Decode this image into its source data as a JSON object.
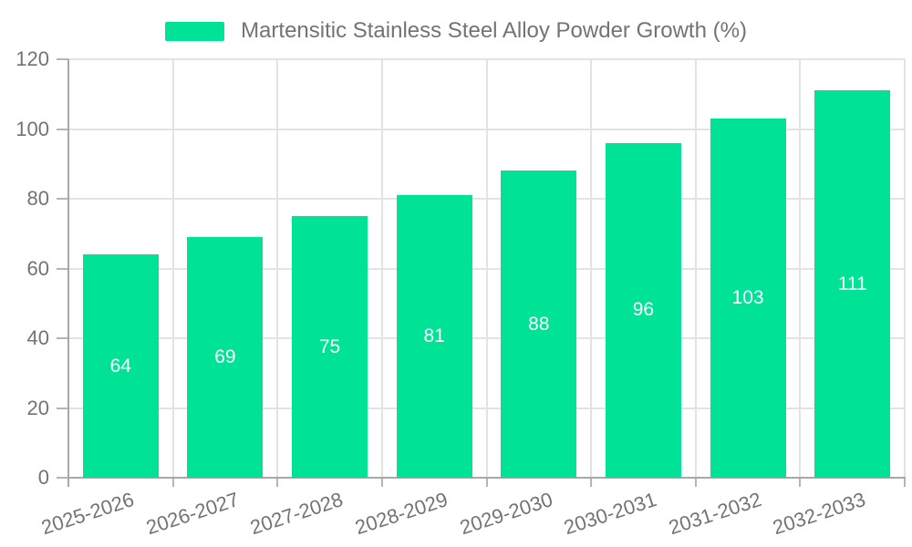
{
  "chart_data": {
    "type": "bar",
    "title": "",
    "legend_label": "Martensitic Stainless Steel Alloy Powder Growth (%)",
    "legend_position": "top-center",
    "categories": [
      "2025-2026",
      "2026-2027",
      "2027-2028",
      "2028-2029",
      "2029-2030",
      "2030-2031",
      "2031-2032",
      "2032-2033"
    ],
    "series": [
      {
        "name": "Martensitic Stainless Steel Alloy Powder Growth (%)",
        "values": [
          64,
          69,
          75,
          81,
          88,
          96,
          103,
          111
        ]
      }
    ],
    "data_labels": "inside-center",
    "xlabel": "",
    "ylabel": "",
    "ylim": [
      0,
      120
    ],
    "yticks": [
      0,
      20,
      40,
      60,
      80,
      100,
      120
    ],
    "grid": true,
    "x_label_rotation_deg": -18,
    "colors": {
      "bar": "#00E396",
      "bar_label": "#FFFFFF",
      "axis": "#A8A8A8",
      "tick": "#B5B5B5",
      "grid": "#E3E3E3",
      "text": "#737373",
      "background": "#FFFFFF"
    }
  }
}
